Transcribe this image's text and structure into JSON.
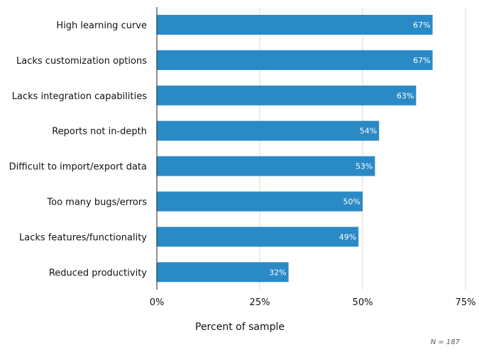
{
  "chart_data": {
    "type": "bar",
    "orientation": "horizontal",
    "categories": [
      "High learning curve",
      "Lacks customization options",
      "Lacks integration capabilities",
      "Reports not in-depth",
      "Difficult to import/export data",
      "Too many bugs/errors",
      "Lacks features/functionality",
      "Reduced productivity"
    ],
    "values": [
      67,
      67,
      63,
      54,
      53,
      50,
      49,
      32
    ],
    "data_labels": [
      "67%",
      "67%",
      "63%",
      "54%",
      "53%",
      "50%",
      "49%",
      "32%"
    ],
    "xlabel": "Percent of sample",
    "xlim": [
      0,
      75
    ],
    "xticks": [
      0,
      25,
      50,
      75
    ],
    "xtick_labels": [
      "0%",
      "25%",
      "50%",
      "75%"
    ],
    "grid": true,
    "note": "N = 187",
    "colors": {
      "bar": "#2a8ac6",
      "grid": "#d9d9d9",
      "axis": "#222222"
    }
  }
}
